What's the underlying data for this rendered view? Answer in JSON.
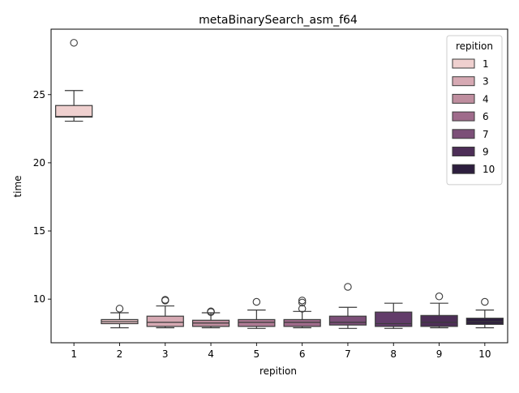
{
  "chart_data": {
    "type": "box",
    "title": "metaBinarySearch_asm_f64",
    "xlabel": "repition",
    "ylabel": "time",
    "ylim": [
      6.8,
      29.8
    ],
    "yticks": [
      10,
      15,
      20,
      25
    ],
    "grid": false,
    "legend": {
      "title": "repition",
      "placement": "top-right",
      "entries": [
        {
          "label": "1",
          "color": "#efd0cf"
        },
        {
          "label": "3",
          "color": "#d6a9b3"
        },
        {
          "label": "4",
          "color": "#bf8e9f"
        },
        {
          "label": "6",
          "color": "#9f6b8b"
        },
        {
          "label": "7",
          "color": "#7c4f78"
        },
        {
          "label": "9",
          "color": "#4d2e57"
        },
        {
          "label": "10",
          "color": "#2d1e3e"
        }
      ]
    },
    "series": [
      {
        "category": "1",
        "color": "#efd0cf",
        "min": 23.05,
        "q1": 23.35,
        "median": 23.4,
        "q3": 24.2,
        "max": 25.3,
        "fliers": [
          28.8
        ]
      },
      {
        "category": "2",
        "color": "#e3bfc3",
        "min": 7.9,
        "q1": 8.2,
        "median": 8.35,
        "q3": 8.5,
        "max": 9.0,
        "fliers": [
          9.3
        ]
      },
      {
        "category": "3",
        "color": "#d6a9b3",
        "min": 7.9,
        "q1": 8.0,
        "median": 8.3,
        "q3": 8.75,
        "max": 9.5,
        "fliers": [
          9.9,
          9.95
        ]
      },
      {
        "category": "4",
        "color": "#bf8e9f",
        "min": 7.9,
        "q1": 8.0,
        "median": 8.25,
        "q3": 8.45,
        "max": 9.0,
        "fliers": [
          9.1,
          9.05
        ]
      },
      {
        "category": "5",
        "color": "#af7b95",
        "min": 7.85,
        "q1": 8.0,
        "median": 8.3,
        "q3": 8.5,
        "max": 9.2,
        "fliers": [
          9.8
        ]
      },
      {
        "category": "6",
        "color": "#9f6b8b",
        "min": 7.9,
        "q1": 8.0,
        "median": 8.3,
        "q3": 8.5,
        "max": 9.1,
        "fliers": [
          9.9,
          9.75,
          9.3
        ]
      },
      {
        "category": "7",
        "color": "#7c4f78",
        "min": 7.85,
        "q1": 8.1,
        "median": 8.3,
        "q3": 8.75,
        "max": 9.4,
        "fliers": [
          10.9
        ]
      },
      {
        "category": "8",
        "color": "#623c6a",
        "min": 7.85,
        "q1": 8.0,
        "median": 8.2,
        "q3": 9.05,
        "max": 9.7,
        "fliers": []
      },
      {
        "category": "9",
        "color": "#4d2e57",
        "min": 7.9,
        "q1": 8.0,
        "median": 8.3,
        "q3": 8.8,
        "max": 9.7,
        "fliers": [
          10.2
        ]
      },
      {
        "category": "10",
        "color": "#2d1e3e",
        "min": 7.9,
        "q1": 8.15,
        "median": 8.35,
        "q3": 8.6,
        "max": 9.2,
        "fliers": [
          9.8
        ]
      }
    ]
  }
}
